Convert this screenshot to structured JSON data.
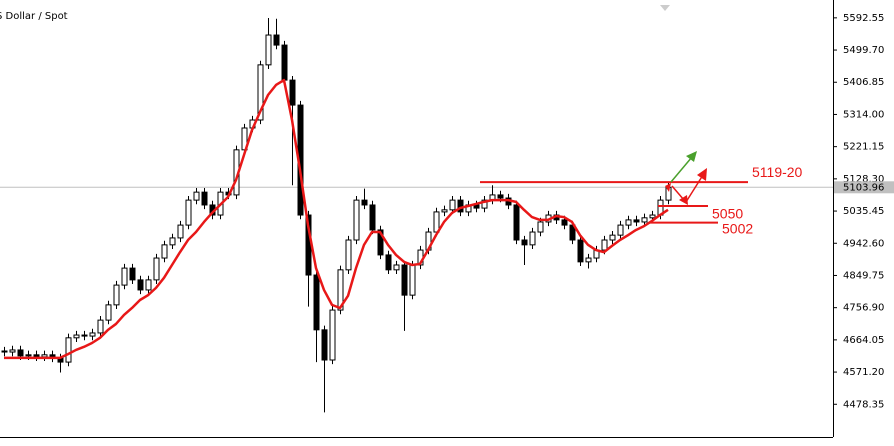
{
  "chart_data": {
    "type": "candlestick",
    "title": "S Dollar / Spot",
    "ylim": [
      4384,
      5644
    ],
    "yticks": [
      {
        "value": 4478.35,
        "label": "4478.35"
      },
      {
        "value": 4571.2,
        "label": "4571.20"
      },
      4664.05,
      {
        "value": 4756.9,
        "label": "4756.90"
      },
      4849.75,
      {
        "value": 4942.6,
        "label": "4942.60"
      },
      5035.45,
      {
        "value": 5128.3,
        "label": "5128.30"
      },
      5221.15,
      {
        "value": 5314,
        "label": "5314.00"
      },
      5406.85,
      {
        "value": 5499.7,
        "label": "5499.70"
      },
      5592.55
    ],
    "last_price": 5103.96,
    "open": [
      4632,
      4629,
      4635,
      4618,
      4621,
      4615,
      4621,
      4612,
      4600,
      4670,
      4678,
      4675,
      4684,
      4721,
      4765,
      4822,
      4871,
      4837,
      4808,
      4837,
      4900,
      4938,
      4958,
      4995,
      5067,
      5090,
      5053,
      5024,
      5090,
      5082,
      5212,
      5275,
      5298,
      5457,
      5543,
      5514,
      5413,
      5341,
      5024,
      4851,
      4693,
      4606,
      4750,
      4866,
      4952,
      5067,
      5053,
      4981,
      4909,
      4866,
      4880,
      4793,
      4880,
      4923,
      4975,
      5033,
      5039,
      5067,
      5033,
      5053,
      5044,
      5067,
      5082,
      5073,
      5053,
      4952,
      4938,
      4975,
      5004,
      5024,
      5010,
      4995,
      4952,
      4889,
      4900,
      4923,
      4952,
      4966,
      4995,
      5010,
      5004,
      5016,
      5024,
      5067
    ],
    "high": [
      4644,
      4647,
      4647,
      4633,
      4633,
      4633,
      4633,
      4624,
      4682,
      4690,
      4690,
      4696,
      4733,
      4777,
      4834,
      4883,
      4883,
      4849,
      4849,
      4912,
      4950,
      4970,
      5007,
      5079,
      5102,
      5102,
      5065,
      5102,
      5102,
      5224,
      5287,
      5310,
      5469,
      5592,
      5590,
      5526,
      5425,
      5353,
      5036,
      4863,
      4705,
      4762,
      4878,
      4964,
      5079,
      5100,
      5065,
      4993,
      4921,
      4892,
      4892,
      4892,
      4935,
      4987,
      5045,
      5051,
      5079,
      5079,
      5065,
      5065,
      5079,
      5110,
      5094,
      5085,
      5065,
      4964,
      4987,
      5016,
      5036,
      5036,
      5022,
      5007,
      4964,
      4912,
      4935,
      4964,
      4978,
      5007,
      5022,
      5022,
      5028,
      5036,
      5079,
      5120
    ],
    "low": [
      4617,
      4617,
      4606,
      4606,
      4603,
      4603,
      4600,
      4570,
      4588,
      4658,
      4663,
      4663,
      4672,
      4709,
      4753,
      4810,
      4825,
      4796,
      4796,
      4825,
      4888,
      4926,
      4946,
      4983,
      5055,
      5041,
      5012,
      5012,
      5070,
      5070,
      5200,
      5263,
      5286,
      5445,
      5502,
      5401,
      5110,
      5012,
      4760,
      4600,
      4455,
      4594,
      4738,
      4854,
      4940,
      5041,
      4969,
      4897,
      4854,
      4854,
      4690,
      4781,
      4868,
      4911,
      4963,
      5021,
      5027,
      5021,
      5021,
      5032,
      5032,
      5055,
      5061,
      5041,
      4940,
      4880,
      4926,
      4963,
      4992,
      4998,
      4983,
      4940,
      4877,
      4870,
      4888,
      4911,
      4940,
      4954,
      4983,
      4992,
      4992,
      5004,
      5012,
      5055
    ],
    "close": [
      4629,
      4635,
      4618,
      4621,
      4615,
      4621,
      4612,
      4600,
      4670,
      4678,
      4675,
      4684,
      4721,
      4765,
      4822,
      4871,
      4837,
      4808,
      4837,
      4900,
      4938,
      4958,
      4995,
      5067,
      5090,
      5053,
      5024,
      5090,
      5082,
      5212,
      5275,
      5298,
      5457,
      5543,
      5514,
      5413,
      5341,
      5024,
      4851,
      4693,
      4606,
      4750,
      4866,
      4952,
      5067,
      5053,
      4981,
      4909,
      4866,
      4880,
      4793,
      4880,
      4923,
      4975,
      5033,
      5039,
      5067,
      5033,
      5053,
      5044,
      5067,
      5082,
      5073,
      5053,
      4952,
      4938,
      4975,
      5004,
      5024,
      5010,
      4995,
      4952,
      4889,
      4900,
      4923,
      4952,
      4966,
      4995,
      5010,
      5004,
      5016,
      5024,
      5067,
      5104
    ],
    "moving_average": {
      "color": "#e81818",
      "values": [
        4612,
        4612,
        4612,
        4612,
        4612,
        4612,
        4612,
        4612,
        4623,
        4635,
        4644,
        4655,
        4670,
        4693,
        4710,
        4736,
        4756,
        4779,
        4793,
        4814,
        4843,
        4880,
        4917,
        4952,
        4975,
        5004,
        5030,
        5053,
        5076,
        5125,
        5197,
        5269,
        5321,
        5370,
        5399,
        5413,
        5298,
        5154,
        4995,
        4871,
        4808,
        4765,
        4756,
        4791,
        4871,
        4938,
        4975,
        4975,
        4938,
        4909,
        4889,
        4880,
        4883,
        4923,
        4966,
        5004,
        5030,
        5044,
        5050,
        5056,
        5062,
        5067,
        5067,
        5067,
        5062,
        5039,
        5018,
        5010,
        5010,
        5021,
        5018,
        5004,
        4966,
        4938,
        4923,
        4917,
        4935,
        4952,
        4966,
        4981,
        4992,
        5007,
        5024,
        5039
      ]
    },
    "levels": [
      {
        "value": 5119,
        "label": "5119-20"
      },
      {
        "value": 5050,
        "label": "5050"
      },
      {
        "value": 5002,
        "label": "5002"
      }
    ],
    "level_color": "#e81818"
  }
}
